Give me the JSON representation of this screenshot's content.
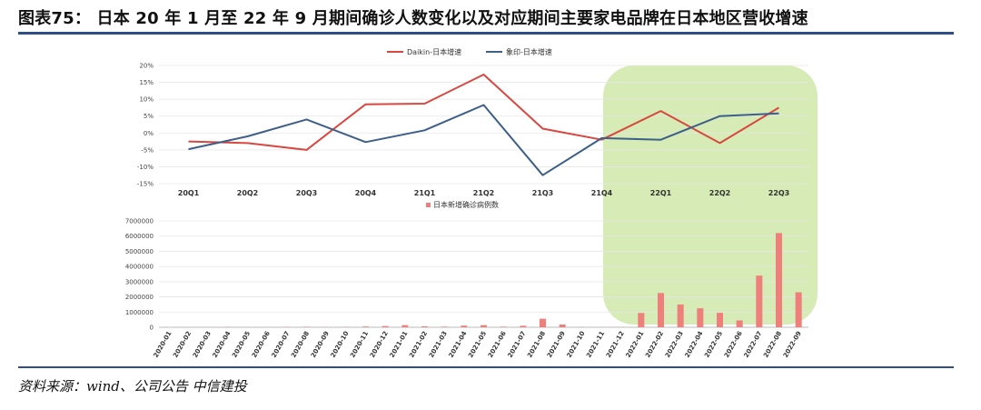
{
  "header": {
    "title": "图表75：  日本 20 年 1 月至 22 年 9 月期间确诊人数变化以及对应期间主要家电品牌在日本地区营收增速"
  },
  "footer": {
    "source": "资料来源：wind、公司公告   中信建投"
  },
  "colors": {
    "red": "#d9473f",
    "blue": "#3d5f8a",
    "bar": "#ee7f7b",
    "highlight": "#cfe8a8",
    "rule": "#2f4e86",
    "grid": "#e6e6e6"
  },
  "chart_data": [
    {
      "type": "line",
      "title": "",
      "categories": [
        "20Q1",
        "20Q2",
        "20Q3",
        "20Q4",
        "21Q1",
        "21Q2",
        "21Q3",
        "21Q4",
        "22Q1",
        "22Q2",
        "22Q3"
      ],
      "series": [
        {
          "name": "Daikin-日本增速",
          "color": "red",
          "values": [
            -2.5,
            -3.0,
            -5.0,
            8.5,
            8.7,
            17.3,
            1.3,
            -2.0,
            6.5,
            -3.0,
            7.5
          ]
        },
        {
          "name": "象印-日本增速",
          "color": "blue",
          "values": [
            -4.8,
            -1.0,
            4.0,
            -2.7,
            0.8,
            8.3,
            -12.5,
            -1.5,
            -2.0,
            5.0,
            5.8
          ]
        }
      ],
      "ylim": [
        -15,
        20
      ],
      "yticks": [
        "20%",
        "15%",
        "10%",
        "5%",
        "0%",
        "-5%",
        "-10%",
        "-15%"
      ],
      "ytick_values": [
        20,
        15,
        10,
        5,
        0,
        -5,
        -10,
        -15
      ],
      "xlabel": "",
      "ylabel": "",
      "grid": true,
      "legend": "top-center"
    },
    {
      "type": "bar",
      "title": "",
      "categories": [
        "2020-01",
        "2020-02",
        "2020-03",
        "2020-04",
        "2020-05",
        "2020-06",
        "2020-07",
        "2020-08",
        "2020-09",
        "2020-10",
        "2020-11",
        "2020-12",
        "2021-01",
        "2021-02",
        "2021-03",
        "2021-04",
        "2021-05",
        "2021-06",
        "2021-07",
        "2021-08",
        "2021-09",
        "2021-10",
        "2021-11",
        "2021-12",
        "2022-01",
        "2022-02",
        "2022-03",
        "2022-04",
        "2022-05",
        "2022-06",
        "2022-07",
        "2022-08",
        "2022-09"
      ],
      "series": [
        {
          "name": "日本新增确诊病例数",
          "color": "bar",
          "values": [
            20,
            200,
            1900,
            12000,
            3000,
            1500,
            20000,
            30000,
            15000,
            17000,
            50000,
            80000,
            140000,
            60000,
            40000,
            110000,
            140000,
            40000,
            100000,
            560000,
            180000,
            10000,
            4000,
            8000,
            940000,
            2250000,
            1500000,
            1250000,
            950000,
            450000,
            3400000,
            6200000,
            2300000
          ]
        }
      ],
      "ylim": [
        0,
        7000000
      ],
      "yticks": [
        "7000000",
        "6000000",
        "5000000",
        "4000000",
        "3000000",
        "2000000",
        "1000000",
        "0"
      ],
      "ytick_values": [
        7000000,
        6000000,
        5000000,
        4000000,
        3000000,
        2000000,
        1000000,
        0
      ],
      "xlabel": "",
      "ylabel": "",
      "grid": true,
      "legend": "top-center"
    }
  ]
}
